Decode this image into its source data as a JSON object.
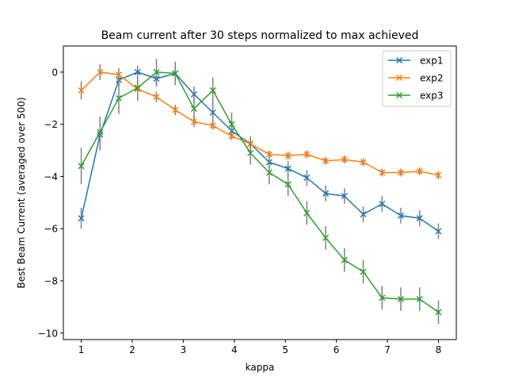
{
  "chart_data": {
    "type": "line",
    "title": "Beam current after 30 steps normalized to max achieved",
    "xlabel": "kappa",
    "ylabel": "Best Beam Current (averaged over 500)",
    "xlim": [
      0.65,
      8.35
    ],
    "ylim": [
      -10.25,
      1.0
    ],
    "xticks": [
      1,
      2,
      3,
      4,
      5,
      6,
      7,
      8
    ],
    "yticks": [
      0,
      -2,
      -4,
      -6,
      -8,
      -10
    ],
    "xtick_labels": [
      "1",
      "2",
      "3",
      "4",
      "5",
      "6",
      "7",
      "8"
    ],
    "ytick_labels": [
      "0",
      "−2",
      "−4",
      "−6",
      "−8",
      "−10"
    ],
    "legend_position": "top-right",
    "grid": false,
    "errorbar_color": "#808080",
    "x": [
      1.0,
      1.3684,
      1.7368,
      2.1053,
      2.4737,
      2.8421,
      3.2105,
      3.5789,
      3.9474,
      4.3158,
      4.6842,
      5.0526,
      5.4211,
      5.7895,
      6.1579,
      6.5263,
      6.8947,
      7.2632,
      7.6316,
      8.0
    ],
    "series": [
      {
        "name": "exp1",
        "color": "#1f77b4",
        "marker": "x",
        "values": [
          -5.6,
          -2.4,
          -0.3,
          0.0,
          -0.25,
          -0.05,
          -0.85,
          -1.55,
          -2.25,
          -2.75,
          -3.45,
          -3.7,
          -4.05,
          -4.65,
          -4.75,
          -5.45,
          -5.05,
          -5.5,
          -5.6,
          -6.1
        ],
        "errors": [
          0.4,
          0.6,
          0.25,
          0.25,
          0.3,
          0.3,
          0.3,
          0.4,
          0.3,
          0.3,
          0.3,
          0.3,
          0.3,
          0.3,
          0.3,
          0.3,
          0.3,
          0.3,
          0.3,
          0.3
        ]
      },
      {
        "name": "exp2",
        "color": "#ff7f0e",
        "marker": "x",
        "values": [
          -0.7,
          0.0,
          -0.1,
          -0.65,
          -0.95,
          -1.45,
          -1.9,
          -2.05,
          -2.45,
          -2.75,
          -3.15,
          -3.2,
          -3.15,
          -3.4,
          -3.35,
          -3.45,
          -3.85,
          -3.85,
          -3.8,
          -3.95
        ],
        "errors": [
          0.35,
          0.3,
          0.25,
          0.4,
          0.2,
          0.2,
          0.2,
          0.15,
          0.15,
          0.15,
          0.15,
          0.15,
          0.15,
          0.15,
          0.15,
          0.15,
          0.15,
          0.15,
          0.15,
          0.15
        ]
      },
      {
        "name": "exp3",
        "color": "#2ca02c",
        "marker": "x",
        "values": [
          -3.6,
          -2.3,
          -1.0,
          -0.6,
          0.0,
          -0.05,
          -1.4,
          -0.7,
          -2.0,
          -3.1,
          -3.85,
          -4.3,
          -5.4,
          -6.35,
          -7.2,
          -7.65,
          -8.65,
          -8.7,
          -8.7,
          -9.2
        ],
        "errors": [
          0.7,
          0.6,
          0.6,
          0.5,
          0.5,
          0.45,
          0.45,
          0.5,
          0.45,
          0.45,
          0.45,
          0.45,
          0.45,
          0.45,
          0.45,
          0.45,
          0.45,
          0.45,
          0.45,
          0.45
        ]
      }
    ]
  }
}
